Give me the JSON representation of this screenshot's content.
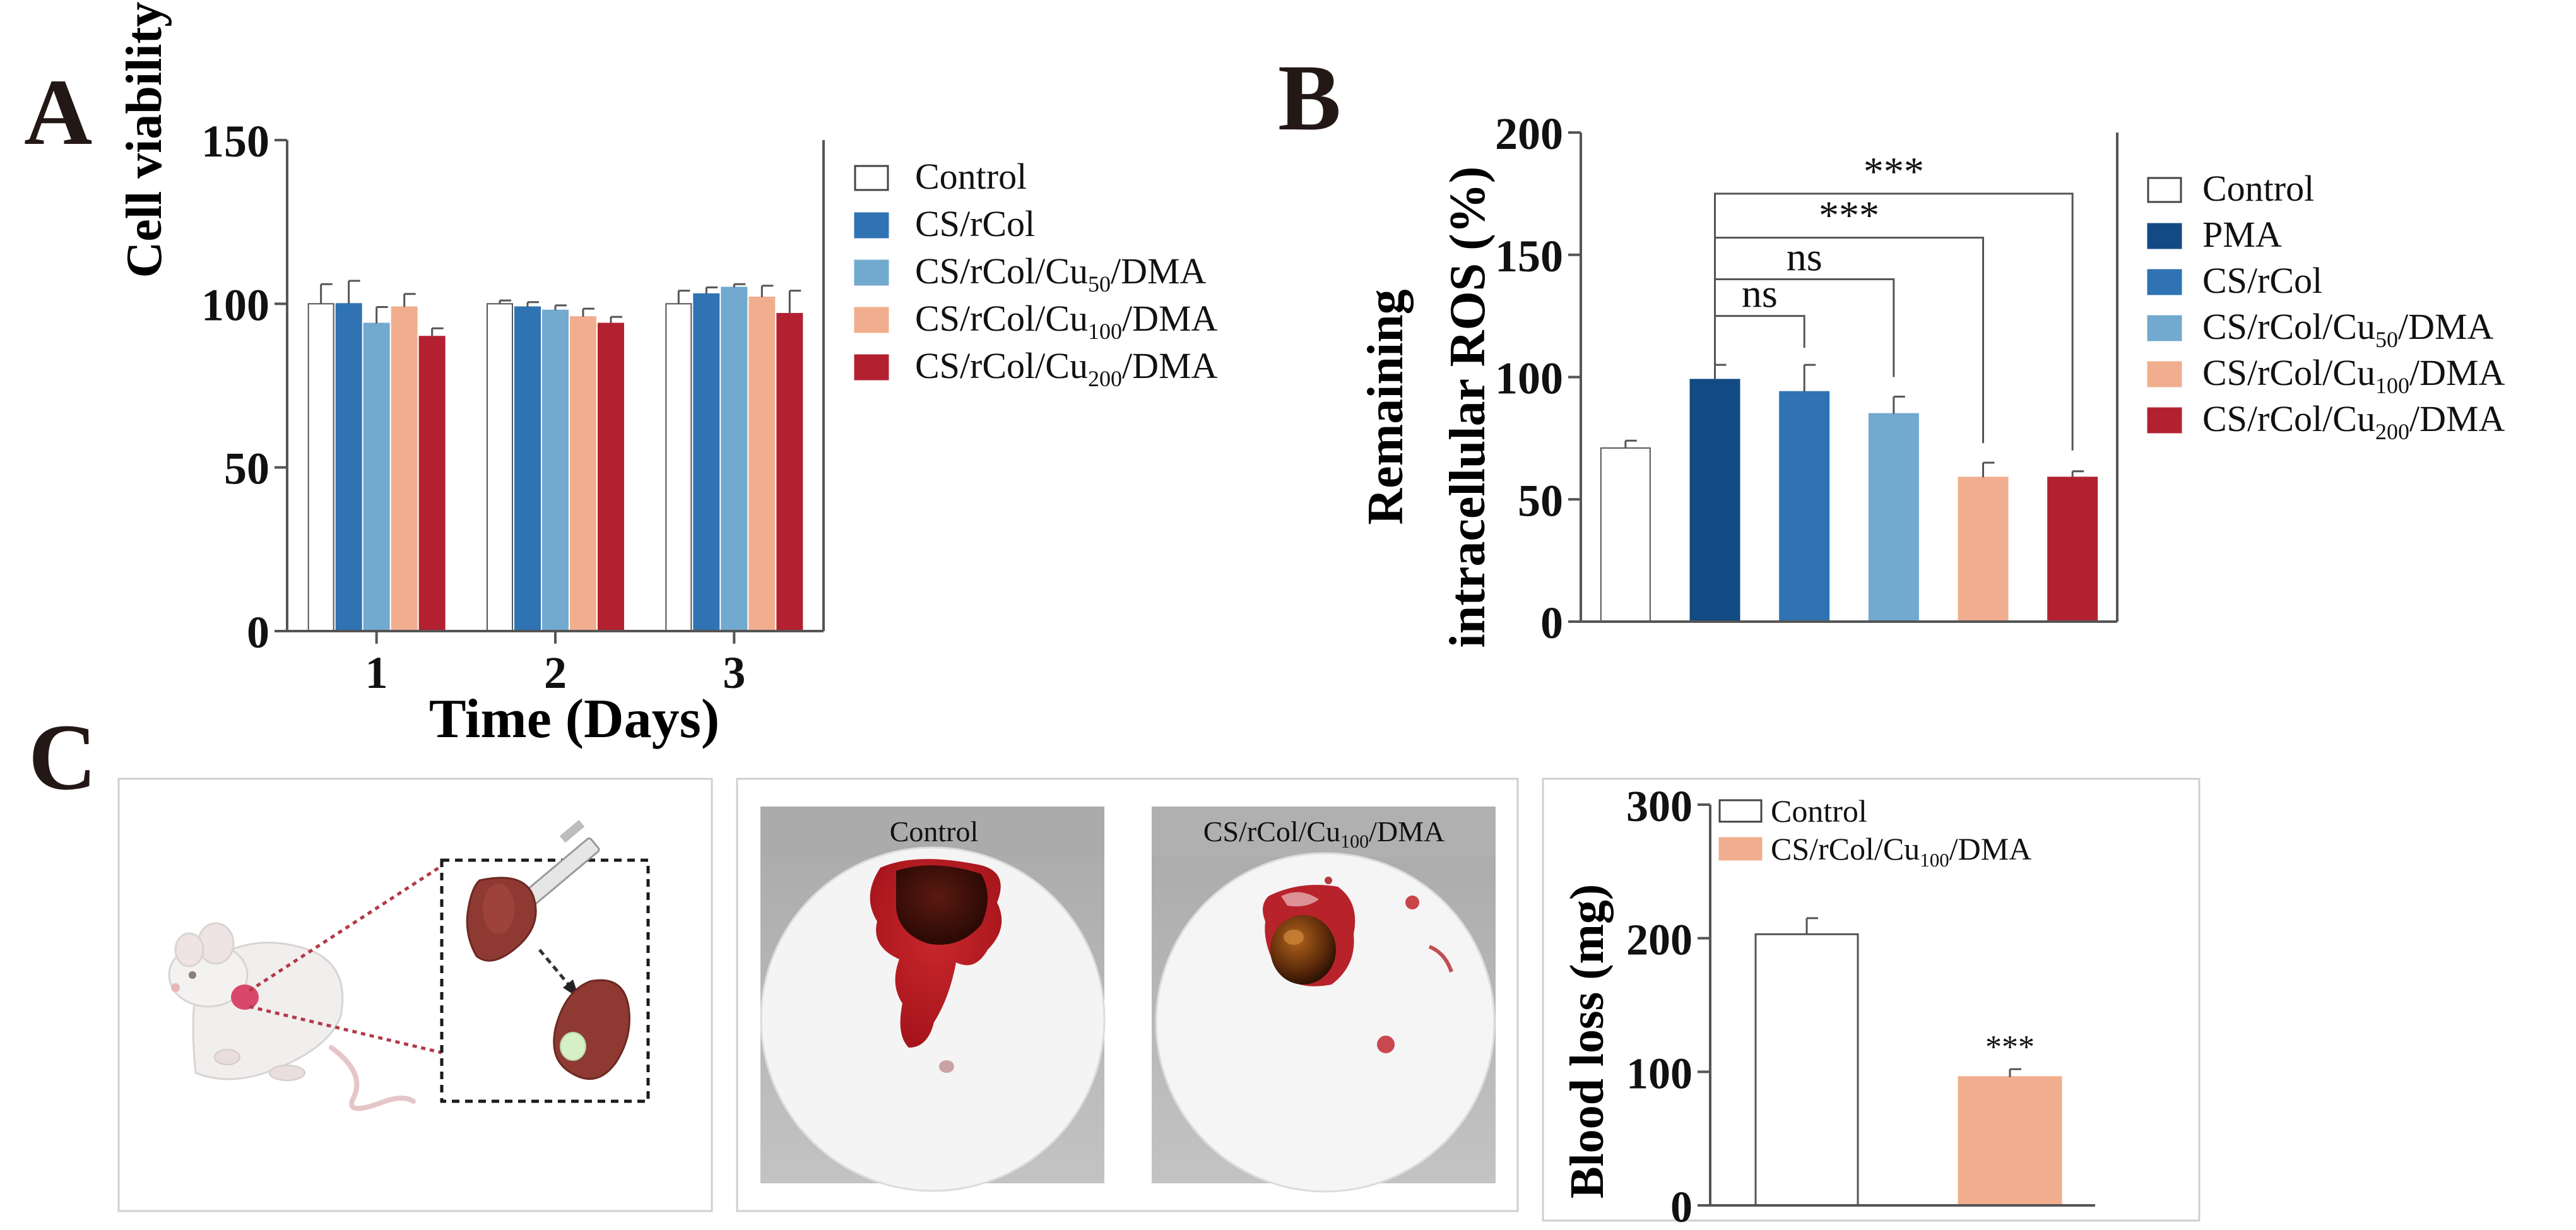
{
  "panels": {
    "a": "A",
    "b": "B",
    "c": "C"
  },
  "colors": {
    "control": "#ffffff",
    "pma": "#124a84",
    "cs_rcol": "#2f73b3",
    "cu50": "#72a9cf",
    "cu100": "#f1ae8e",
    "cu200": "#b32131",
    "axis": "#000000"
  },
  "chart_data": [
    {
      "id": "A",
      "type": "bar",
      "xlabel": "Time (Days)",
      "ylabel": "Cell viability (%)",
      "ylim": [
        0,
        150
      ],
      "yticks": [
        "0",
        "50",
        "100",
        "150"
      ],
      "categories": [
        "1",
        "2",
        "3"
      ],
      "legend_position": "right",
      "series": [
        {
          "name": "Control",
          "color_key": "control",
          "values": [
            100,
            100,
            100
          ],
          "errors": [
            6,
            1,
            4
          ]
        },
        {
          "name": "CS/rCol",
          "color_key": "cs_rcol",
          "values": [
            100,
            99,
            103
          ],
          "errors": [
            7,
            1.5,
            2
          ]
        },
        {
          "name": "CS/rCol/Cu50/DMA",
          "color_key": "cu50",
          "values": [
            94,
            98,
            105
          ],
          "errors": [
            5,
            1.5,
            1
          ]
        },
        {
          "name": "CS/rCol/Cu100/DMA",
          "color_key": "cu100",
          "values": [
            99,
            96,
            102
          ],
          "errors": [
            4,
            2.5,
            3.5
          ]
        },
        {
          "name": "CS/rCol/Cu200/DMA",
          "color_key": "cu200",
          "values": [
            90,
            94,
            97
          ],
          "errors": [
            2.5,
            2,
            7
          ]
        }
      ],
      "legend": [
        {
          "base": "Control",
          "sub": "",
          "tail": ""
        },
        {
          "base": "CS/rCol",
          "sub": "",
          "tail": ""
        },
        {
          "base": "CS/rCol/Cu",
          "sub": "50",
          "tail": "/DMA"
        },
        {
          "base": "CS/rCol/Cu",
          "sub": "100",
          "tail": "/DMA"
        },
        {
          "base": "CS/rCol/Cu",
          "sub": "200",
          "tail": "/DMA"
        }
      ]
    },
    {
      "id": "B",
      "type": "bar",
      "ylabel_line1": "Remaining",
      "ylabel_line2": "intracellular ROS (%)",
      "ylim": [
        0,
        200
      ],
      "yticks": [
        "0",
        "50",
        "100",
        "150",
        "200"
      ],
      "legend_position": "right",
      "bars": [
        {
          "name": "Control",
          "color_key": "control",
          "value": 71,
          "error": 3
        },
        {
          "name": "PMA",
          "color_key": "pma",
          "value": 99,
          "error": 6
        },
        {
          "name": "CS/rCol",
          "color_key": "cs_rcol",
          "value": 94,
          "error": 11
        },
        {
          "name": "CS/rCol/Cu50/DMA",
          "color_key": "cu50",
          "value": 85,
          "error": 7
        },
        {
          "name": "CS/rCol/Cu100/DMA",
          "color_key": "cu100",
          "value": 59,
          "error": 6
        },
        {
          "name": "CS/rCol/Cu200/DMA",
          "color_key": "cu200",
          "value": 59,
          "error": 2.5
        }
      ],
      "significance": [
        {
          "from": 1,
          "to": 2,
          "y": 125,
          "label": "ns"
        },
        {
          "from": 1,
          "to": 3,
          "y": 140,
          "label": "ns"
        },
        {
          "from": 1,
          "to": 4,
          "y": 157,
          "label": "***"
        },
        {
          "from": 1,
          "to": 5,
          "y": 175,
          "label": "***"
        }
      ],
      "legend": [
        {
          "base": "Control",
          "sub": "",
          "tail": ""
        },
        {
          "base": "PMA",
          "sub": "",
          "tail": ""
        },
        {
          "base": "CS/rCol",
          "sub": "",
          "tail": ""
        },
        {
          "base": "CS/rCol/Cu",
          "sub": "50",
          "tail": "/DMA"
        },
        {
          "base": "CS/rCol/Cu",
          "sub": "100",
          "tail": "/DMA"
        },
        {
          "base": "CS/rCol/Cu",
          "sub": "200",
          "tail": "/DMA"
        }
      ]
    },
    {
      "id": "C",
      "type": "bar",
      "ylabel": "Blood loss (mg)",
      "ylim": [
        0,
        300
      ],
      "yticks": [
        "0",
        "100",
        "200",
        "300"
      ],
      "legend_position": "top-left",
      "bars": [
        {
          "name": "Control",
          "color_key": "control",
          "value": 203,
          "error": 12,
          "mark": ""
        },
        {
          "name": "CS/rCol/Cu100/DMA",
          "color_key": "cu100",
          "value": 96,
          "error": 6,
          "mark": "***"
        }
      ],
      "legend": [
        {
          "base": "Control",
          "sub": "",
          "tail": ""
        },
        {
          "base": "CS/rCol/Cu",
          "sub": "100",
          "tail": "/DMA"
        }
      ]
    }
  ],
  "photo": {
    "left_title": "Control",
    "right_title": {
      "base": "CS/rCol/Cu",
      "sub": "100",
      "tail": "/DMA"
    }
  }
}
